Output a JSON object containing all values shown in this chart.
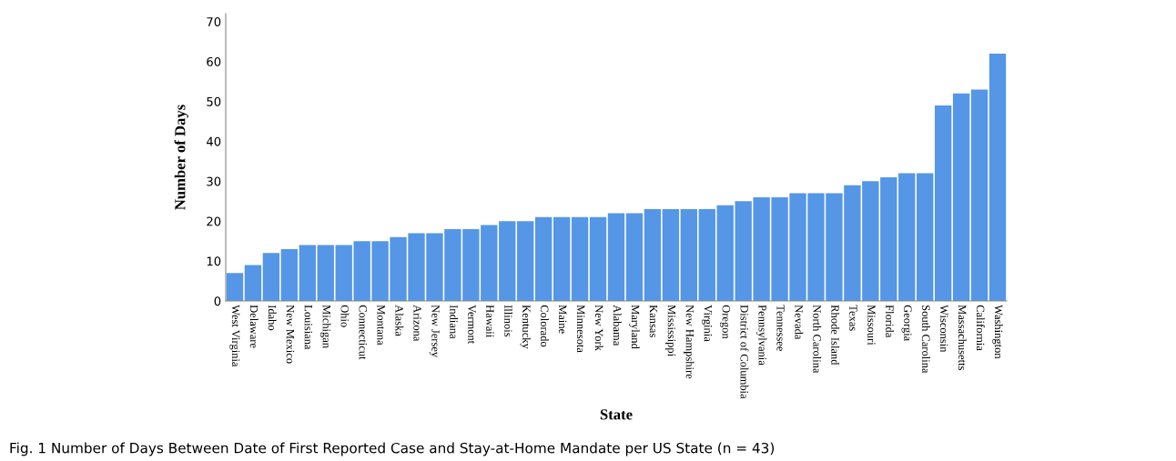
{
  "chart_data": {
    "type": "bar",
    "xlabel": "State",
    "ylabel": "Number of Days",
    "categories": [
      "West Virginia",
      "Delaware",
      "Idaho",
      "New Mexico",
      "Louisiana",
      "Michigan",
      "Ohio",
      "Connecticut",
      "Montana",
      "Alaska",
      "Arizona",
      "New Jersey",
      "Indiana",
      "Vermont",
      "Hawaii",
      "Illinois",
      "Kentucky",
      "Colorado",
      "Maine",
      "Minnesota",
      "New York",
      "Alabama",
      "Maryland",
      "Kansas",
      "Mississippi",
      "New Hampshire",
      "Virginia",
      "Oregon",
      "District of Columbia",
      "Pennsylvania",
      "Tennessee",
      "Nevada",
      "North Carolina",
      "Rhode Island",
      "Texas",
      "Missouri",
      "Florida",
      "Georgia",
      "South Carolina",
      "Wisconsin",
      "Massachusetts",
      "California",
      "Washington"
    ],
    "values": [
      7,
      9,
      12,
      13,
      14,
      14,
      14,
      15,
      15,
      16,
      17,
      17,
      18,
      18,
      19,
      20,
      20,
      21,
      21,
      21,
      21,
      22,
      22,
      23,
      23,
      23,
      23,
      24,
      25,
      26,
      26,
      27,
      27,
      27,
      29,
      30,
      31,
      32,
      32,
      49,
      52,
      53,
      62
    ],
    "color": "#5596e6",
    "ylim": [
      0,
      72
    ],
    "yticks": [
      0,
      10,
      20,
      30,
      40,
      50,
      60,
      70
    ],
    "grid": false,
    "legend": false,
    "annotations": [
      "Fig. 1 Number of Days Between Date of First Reported Case and Stay-at-Home Mandate per US State (n = 43)"
    ]
  }
}
